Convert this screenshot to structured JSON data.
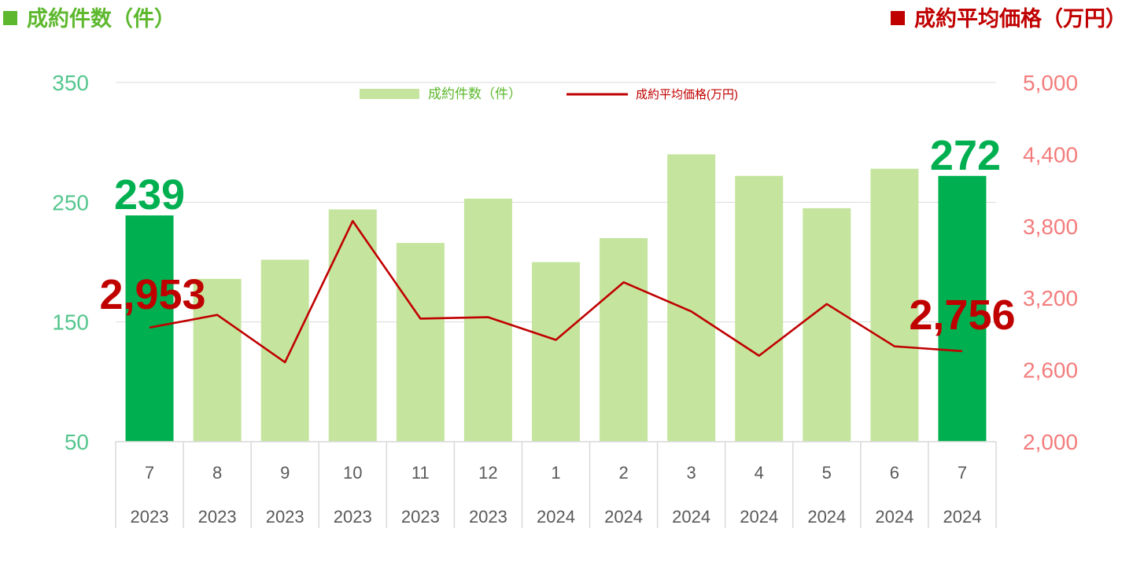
{
  "header": {
    "left_title": "成約件数（件）",
    "right_title": "成約平均価格（万円）"
  },
  "colors": {
    "bar": "#C5E59E",
    "bar_highlight": "#00B050",
    "line": "#C00000",
    "left_axis": "#55C68E",
    "right_axis": "#F47C7C",
    "header_left": "#5DB82E",
    "header_right": "#C00000"
  },
  "chart_data": {
    "type": "bar",
    "categories": [
      {
        "month": "7",
        "year": "2023"
      },
      {
        "month": "8",
        "year": "2023"
      },
      {
        "month": "9",
        "year": "2023"
      },
      {
        "month": "10",
        "year": "2023"
      },
      {
        "month": "11",
        "year": "2023"
      },
      {
        "month": "12",
        "year": "2023"
      },
      {
        "month": "1",
        "year": "2024"
      },
      {
        "month": "2",
        "year": "2024"
      },
      {
        "month": "3",
        "year": "2024"
      },
      {
        "month": "4",
        "year": "2024"
      },
      {
        "month": "5",
        "year": "2024"
      },
      {
        "month": "6",
        "year": "2024"
      },
      {
        "month": "7",
        "year": "2024"
      }
    ],
    "series": [
      {
        "name": "成約件数（件）",
        "type": "bar",
        "axis": "left",
        "values": [
          239,
          186,
          202,
          244,
          216,
          253,
          200,
          220,
          290,
          272,
          245,
          278,
          272
        ],
        "highlight": [
          true,
          false,
          false,
          false,
          false,
          false,
          false,
          false,
          false,
          false,
          false,
          false,
          true
        ]
      },
      {
        "name": "成約平均価格(万円)",
        "type": "line",
        "axis": "right",
        "values": [
          2953,
          3059,
          2664,
          3843,
          3028,
          3040,
          2850,
          3331,
          3088,
          2718,
          3150,
          2796,
          2756
        ]
      }
    ],
    "left_axis": {
      "ylim": [
        50,
        350
      ],
      "ticks": [
        "350",
        "250",
        "150",
        "50"
      ]
    },
    "right_axis": {
      "ylim": [
        2000,
        5000
      ],
      "ticks": [
        "5,000",
        "4,400",
        "3,800",
        "3,200",
        "2,600",
        "2,000"
      ]
    },
    "callouts": {
      "bar_first": "239",
      "bar_last": "272",
      "line_first": "2,953",
      "line_last": "2,756"
    },
    "legend": {
      "position": "top-center",
      "bar_label": "成約件数（件）",
      "line_label": "成約平均価格(万円)"
    },
    "grid": true
  }
}
